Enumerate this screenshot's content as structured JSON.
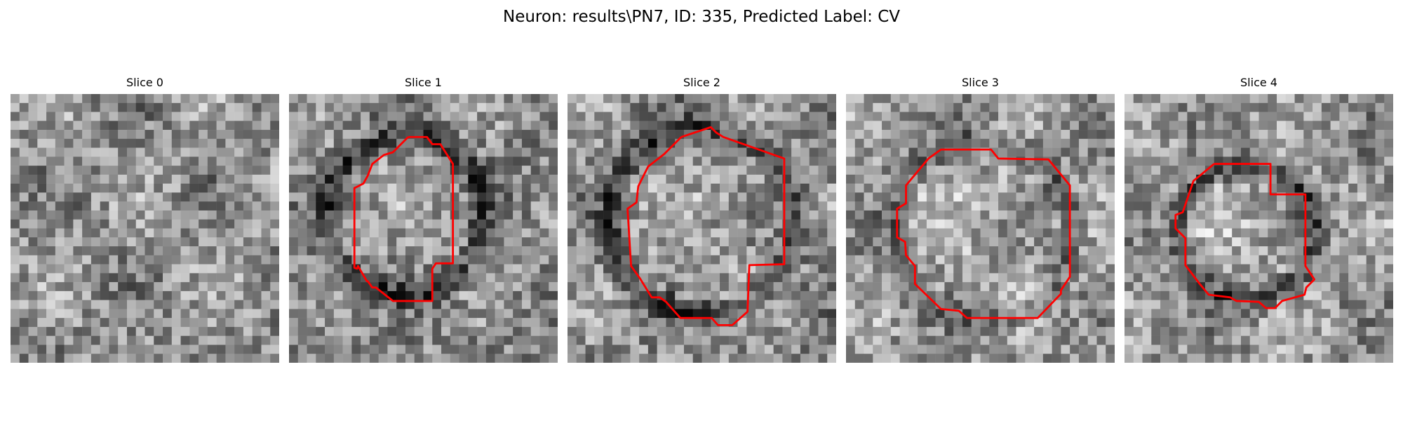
{
  "figure": {
    "title": "Neuron: results\\PN7, ID: 335, Predicted Label: CV",
    "contour_color": "#ff0000",
    "colormap": "gray",
    "panels": [
      {
        "title": "Slice 0",
        "has_contour": false
      },
      {
        "title": "Slice 1",
        "has_contour": true
      },
      {
        "title": "Slice 2",
        "has_contour": true
      },
      {
        "title": "Slice 3",
        "has_contour": true
      },
      {
        "title": "Slice 4",
        "has_contour": true
      }
    ]
  }
}
